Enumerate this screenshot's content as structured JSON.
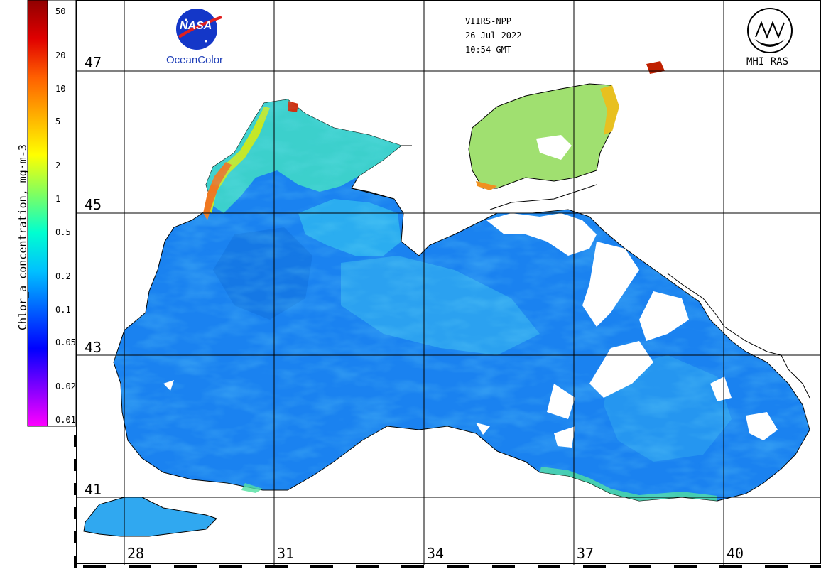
{
  "header": {
    "sensor": "VIIRS-NPP",
    "date": "26 Jul 2022",
    "time": "10:54 GMT"
  },
  "logos": {
    "nasa_word": "NASA",
    "oceancolor": "OceanColor",
    "mhi": "MHI RAS"
  },
  "colorbar": {
    "title": "Chlor_a concentration, mg·m-3",
    "ticks": [
      "50",
      "20",
      "10",
      "5",
      "2",
      "1",
      "0.5",
      "0.2",
      "0.1",
      "0.05",
      "0.02",
      "0.01"
    ],
    "scale": "log",
    "colors": [
      "#ff00ff",
      "#8000ff",
      "#0000ff",
      "#0060ff",
      "#00c0ff",
      "#00ffd0",
      "#80ff60",
      "#ffff00",
      "#ffb000",
      "#ff6000",
      "#e00000",
      "#900000"
    ]
  },
  "grid": {
    "latitudes": [
      "47",
      "45",
      "43",
      "41"
    ],
    "longitudes": [
      "28",
      "31",
      "34",
      "37",
      "40"
    ]
  },
  "colors": {
    "sea": "#1a82f0",
    "sea_light": "#30b8f0",
    "coastal": "#60e0b0",
    "nearshore": "#f08020",
    "bloom": "#d02000",
    "land": "#ffffff",
    "cloud": "#ffffff"
  }
}
